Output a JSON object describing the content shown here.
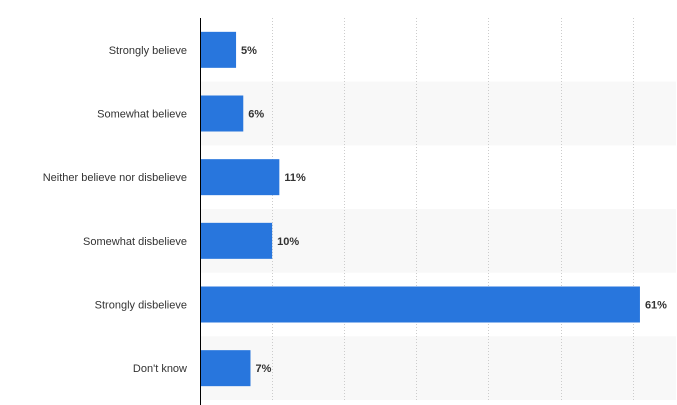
{
  "chart_data": {
    "type": "bar",
    "orientation": "horizontal",
    "title": "",
    "xlabel": "",
    "ylabel": "",
    "categories": [
      "Strongly believe",
      "Somewhat believe",
      "Neither believe nor disbelieve",
      "Somewhat disbelieve",
      "Strongly disbelieve",
      "Don't know"
    ],
    "values": [
      5,
      6,
      11,
      10,
      61,
      7
    ],
    "value_labels": [
      "5%",
      "6%",
      "11%",
      "10%",
      "61%",
      "7%"
    ],
    "xlim": [
      0,
      66
    ],
    "gridlines": [
      10,
      20,
      30,
      40,
      50,
      60
    ],
    "grid": true,
    "bar_color": "#2876dd",
    "band_color": "#f8f8f8",
    "grid_color": "#cccccc",
    "axis_color": "#000000"
  }
}
